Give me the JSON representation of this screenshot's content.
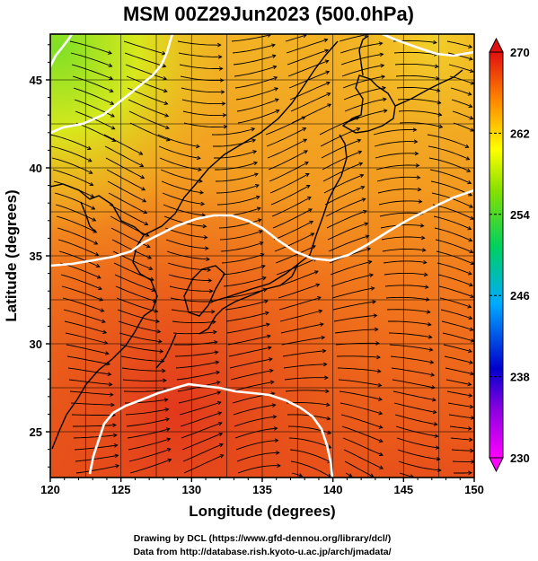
{
  "title": "MSM 00Z29Jun2023 (500.0hPa)",
  "xaxis": {
    "label": "Longitude (degrees)",
    "ticks": [
      "120",
      "125",
      "130",
      "135",
      "140",
      "145",
      "150"
    ]
  },
  "yaxis": {
    "label": "Latitude  (degrees)",
    "ticks": [
      "25",
      "30",
      "35",
      "40",
      "45"
    ]
  },
  "colorbar": {
    "ticks": [
      "270",
      "262",
      "254",
      "246",
      "238",
      "230"
    ]
  },
  "credits": {
    "line1": "Drawing by DCL (https://www.gfd-dennou.org/library/dcl/)",
    "line2": "Data from http://database.rish.kyoto-u.ac.jp/arch/jmadata/"
  },
  "chart_data": {
    "type": "heatmap",
    "title": "MSM 00Z29Jun2023 (500.0hPa)",
    "xlabel": "Longitude (degrees)",
    "ylabel": "Latitude  (degrees)",
    "xlim": [
      120,
      150
    ],
    "ylim": [
      22.4,
      47.6
    ],
    "colorbar_range": [
      230,
      270
    ],
    "colorbar_ticks": [
      230,
      238,
      246,
      254,
      262,
      270
    ],
    "colormap": [
      "#ff00ff",
      "#0000cc",
      "#00aaff",
      "#00d060",
      "#ffff00",
      "#ff8800",
      "#e01010"
    ],
    "grid": true,
    "overlay": "streamlines",
    "contour_color": "#ffffff"
  }
}
